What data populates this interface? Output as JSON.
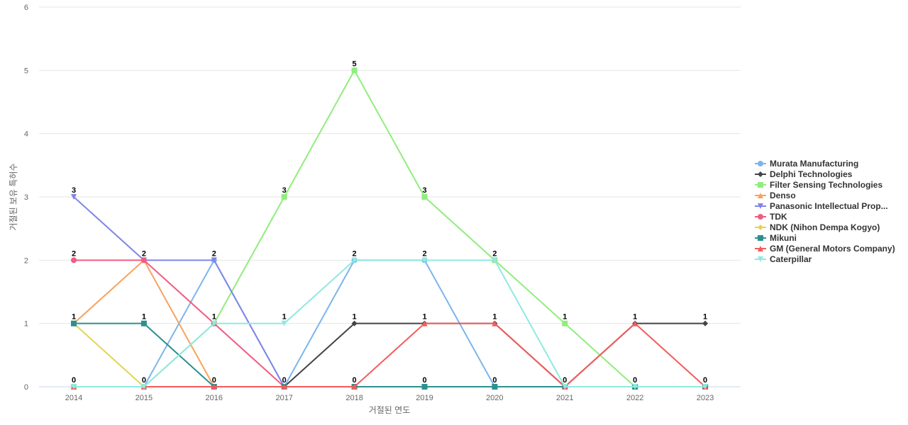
{
  "chart_data": {
    "type": "line",
    "xlabel": "거절된 연도",
    "ylabel": "거절된 보유 특허수",
    "categories": [
      "2014",
      "2015",
      "2016",
      "2017",
      "2018",
      "2019",
      "2020",
      "2021",
      "2022",
      "2023"
    ],
    "ylim": [
      0,
      6
    ],
    "yticks": [
      0,
      1,
      2,
      3,
      4,
      5,
      6
    ],
    "grid": true,
    "legend_position": "right",
    "series": [
      {
        "name": "Murata Manufacturing",
        "color": "#7cb5ec",
        "marker": "circle",
        "values": [
          0,
          0,
          2,
          0,
          2,
          2,
          0,
          0,
          0,
          0
        ]
      },
      {
        "name": "Delphi Technologies",
        "color": "#434348",
        "marker": "diamond",
        "values": [
          0,
          0,
          0,
          0,
          1,
          1,
          1,
          0,
          1,
          1
        ]
      },
      {
        "name": "Filter Sensing Technologies",
        "color": "#90ed7d",
        "marker": "square",
        "values": [
          0,
          0,
          1,
          3,
          5,
          3,
          2,
          1,
          0,
          0
        ]
      },
      {
        "name": "Denso",
        "color": "#f7a35c",
        "marker": "triangle",
        "values": [
          1,
          2,
          0,
          0,
          0,
          0,
          0,
          0,
          0,
          0
        ]
      },
      {
        "name": "Panasonic Intellectual Prop...",
        "color": "#8085e9",
        "marker": "triangle-down",
        "values": [
          3,
          2,
          2,
          0,
          0,
          0,
          0,
          0,
          0,
          0
        ]
      },
      {
        "name": "TDK",
        "color": "#f15c80",
        "marker": "circle",
        "values": [
          2,
          2,
          1,
          0,
          0,
          0,
          0,
          0,
          0,
          0
        ]
      },
      {
        "name": "NDK (Nihon Dempa Kogyo)",
        "color": "#e4d354",
        "marker": "diamond",
        "values": [
          1,
          0,
          0,
          0,
          0,
          0,
          0,
          0,
          0,
          0
        ]
      },
      {
        "name": "Mikuni",
        "color": "#2b908f",
        "marker": "square",
        "values": [
          1,
          1,
          0,
          0,
          0,
          0,
          0,
          0,
          0,
          0
        ]
      },
      {
        "name": "GM (General Motors Company)",
        "color": "#f45b5b",
        "marker": "triangle",
        "values": [
          0,
          0,
          0,
          0,
          0,
          1,
          1,
          0,
          1,
          0
        ]
      },
      {
        "name": "Caterpillar",
        "color": "#91e8e1",
        "marker": "triangle-down",
        "values": [
          0,
          0,
          1,
          1,
          2,
          2,
          2,
          0,
          0,
          0
        ]
      }
    ],
    "data_labels": [
      {
        "x": "2014",
        "y": 3,
        "text": "3"
      },
      {
        "x": "2014",
        "y": 2,
        "text": "2"
      },
      {
        "x": "2014",
        "y": 1,
        "text": "1"
      },
      {
        "x": "2014",
        "y": 0,
        "text": "0"
      },
      {
        "x": "2015",
        "y": 2,
        "text": "2"
      },
      {
        "x": "2015",
        "y": 1,
        "text": "1"
      },
      {
        "x": "2015",
        "y": 0,
        "text": "0"
      },
      {
        "x": "2016",
        "y": 2,
        "text": "2"
      },
      {
        "x": "2016",
        "y": 1,
        "text": "1"
      },
      {
        "x": "2016",
        "y": 0,
        "text": "0"
      },
      {
        "x": "2017",
        "y": 3,
        "text": "3"
      },
      {
        "x": "2017",
        "y": 1,
        "text": "1"
      },
      {
        "x": "2017",
        "y": 0,
        "text": "0"
      },
      {
        "x": "2018",
        "y": 5,
        "text": "5"
      },
      {
        "x": "2018",
        "y": 2,
        "text": "2"
      },
      {
        "x": "2018",
        "y": 1,
        "text": "1"
      },
      {
        "x": "2018",
        "y": 0,
        "text": "0"
      },
      {
        "x": "2019",
        "y": 3,
        "text": "3"
      },
      {
        "x": "2019",
        "y": 2,
        "text": "2"
      },
      {
        "x": "2019",
        "y": 1,
        "text": "1"
      },
      {
        "x": "2019",
        "y": 0,
        "text": "0"
      },
      {
        "x": "2020",
        "y": 2,
        "text": "2"
      },
      {
        "x": "2020",
        "y": 1,
        "text": "1"
      },
      {
        "x": "2020",
        "y": 0,
        "text": "0"
      },
      {
        "x": "2021",
        "y": 1,
        "text": "1"
      },
      {
        "x": "2021",
        "y": 0,
        "text": "0"
      },
      {
        "x": "2022",
        "y": 1,
        "text": "1"
      },
      {
        "x": "2022",
        "y": 0,
        "text": "0"
      },
      {
        "x": "2023",
        "y": 1,
        "text": "1"
      },
      {
        "x": "2023",
        "y": 0,
        "text": "0"
      }
    ]
  }
}
